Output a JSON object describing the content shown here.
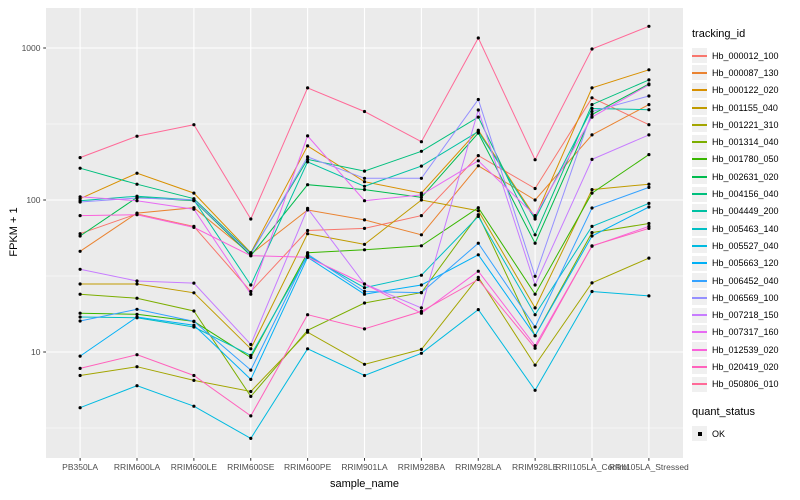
{
  "panel": {
    "bg_color": "#EBEBEB",
    "grid_color": "#FFFFFF",
    "point_color": "#000000",
    "axis_text_color": "#4D4D4D",
    "tick_color": "#333333"
  },
  "chart_data": {
    "type": "line",
    "title": "",
    "xlabel": "sample_name",
    "ylabel": "FPKM + 1",
    "y_scale": "log10",
    "y_ticks": [
      10,
      100,
      1000
    ],
    "y_minor_ticks": [
      3.162,
      31.62,
      316.2
    ],
    "ylim": [
      1.9,
      1850
    ],
    "grid": true,
    "legend_position": "right",
    "legend_title": "tracking_id",
    "quant_legend": {
      "title": "quant_status",
      "items": [
        {
          "label": "OK"
        }
      ]
    },
    "categories": [
      "PB350LA",
      "RRIM600LA",
      "RRIM600LE",
      "RRIM600SE",
      "RRIM600PE",
      "RRIM901LA",
      "RRIM928BA",
      "RRIM928LA",
      "RRIM928LE",
      "RRII105LA_Control",
      "RRII105LA_Stressed"
    ],
    "series": [
      {
        "name": "Hb_000012_100",
        "color": "#F8766D",
        "values": [
          60,
          81,
          67,
          25,
          63,
          65,
          79,
          196,
          119,
          470,
          313
        ]
      },
      {
        "name": "Hb_000087_130",
        "color": "#EA8331",
        "values": [
          46,
          82,
          89,
          44,
          86,
          74,
          59,
          168,
          100,
          268,
          424
        ]
      },
      {
        "name": "Hb_000122_020",
        "color": "#D89000",
        "values": [
          102,
          150,
          111,
          45,
          227,
          132,
          111,
          288,
          77,
          546,
          719
        ]
      },
      {
        "name": "Hb_001155_040",
        "color": "#C09B00",
        "values": [
          28,
          28,
          24.5,
          10.5,
          60,
          51,
          100,
          85,
          19.5,
          117,
          127
        ]
      },
      {
        "name": "Hb_001221_310",
        "color": "#A3A500",
        "values": [
          7,
          8,
          6.5,
          5.5,
          13.5,
          8.3,
          10.4,
          31,
          8.2,
          28.5,
          41.5
        ]
      },
      {
        "name": "Hb_001314_040",
        "color": "#7CAE00",
        "values": [
          24,
          22.6,
          18.6,
          5.1,
          13.9,
          21,
          24.6,
          80,
          12.8,
          61,
          70
        ]
      },
      {
        "name": "Hb_001780_050",
        "color": "#39B600",
        "values": [
          18,
          17.7,
          15.9,
          9.2,
          45,
          47,
          50,
          89,
          24,
          111,
          199
        ]
      },
      {
        "name": "Hb_002631_020",
        "color": "#00BB4E",
        "values": [
          58,
          104,
          99,
          43,
          126,
          117,
          104,
          276,
          52,
          365,
          580
        ]
      },
      {
        "name": "Hb_004156_040",
        "color": "#00BF7D",
        "values": [
          162,
          127,
          102,
          44.7,
          185,
          155,
          209,
          351,
          59,
          424,
          617
        ]
      },
      {
        "name": "Hb_004449_200",
        "color": "#00C1A3",
        "values": [
          99,
          106,
          100,
          27.6,
          178,
          123,
          167,
          282,
          75,
          400,
          393
        ]
      },
      {
        "name": "Hb_005463_140",
        "color": "#00BFC4",
        "values": [
          17,
          16.8,
          14.6,
          9.5,
          43,
          26.5,
          32,
          78,
          17.6,
          67,
          95
        ]
      },
      {
        "name": "Hb_005527_040",
        "color": "#00BAE0",
        "values": [
          4.3,
          6,
          4.4,
          2.7,
          10.5,
          7,
          9.8,
          19,
          5.6,
          25,
          23.4
        ]
      },
      {
        "name": "Hb_005663_120",
        "color": "#00B0F6",
        "values": [
          9.4,
          17,
          15,
          6.6,
          42,
          24,
          27.6,
          43.6,
          12.8,
          58,
          90
        ]
      },
      {
        "name": "Hb_006452_040",
        "color": "#35A2FF",
        "values": [
          16,
          19.1,
          15.9,
          7.6,
          44,
          25,
          24.6,
          52,
          14.6,
          88.6,
          121
        ]
      },
      {
        "name": "Hb_006569_100",
        "color": "#9590FF",
        "values": [
          97,
          103,
          100,
          44,
          192,
          139,
          139,
          458,
          31.5,
          382,
          483
        ]
      },
      {
        "name": "Hb_007218_150",
        "color": "#C77CFF",
        "values": [
          35,
          29.3,
          28.4,
          11.2,
          88,
          28,
          19.5,
          391,
          27.6,
          185,
          268
        ]
      },
      {
        "name": "Hb_007317_160",
        "color": "#E76BF3",
        "values": [
          105,
          99,
          87,
          24,
          264,
          99,
          108,
          181,
          79,
          351,
          573
        ]
      },
      {
        "name": "Hb_012539_020",
        "color": "#FA62DB",
        "values": [
          79,
          80,
          66,
          43,
          42,
          28,
          18,
          34,
          11,
          49.7,
          67
        ]
      },
      {
        "name": "Hb_020419_020",
        "color": "#FF62BC",
        "values": [
          7.8,
          9.6,
          7,
          3.8,
          17.6,
          14.2,
          18.5,
          30,
          10.6,
          50,
          65
        ]
      },
      {
        "name": "Hb_050806_010",
        "color": "#FF6A98",
        "values": [
          190,
          263,
          313,
          75,
          546,
          382,
          242,
          1164,
          184,
          985,
          1390
        ]
      }
    ]
  }
}
